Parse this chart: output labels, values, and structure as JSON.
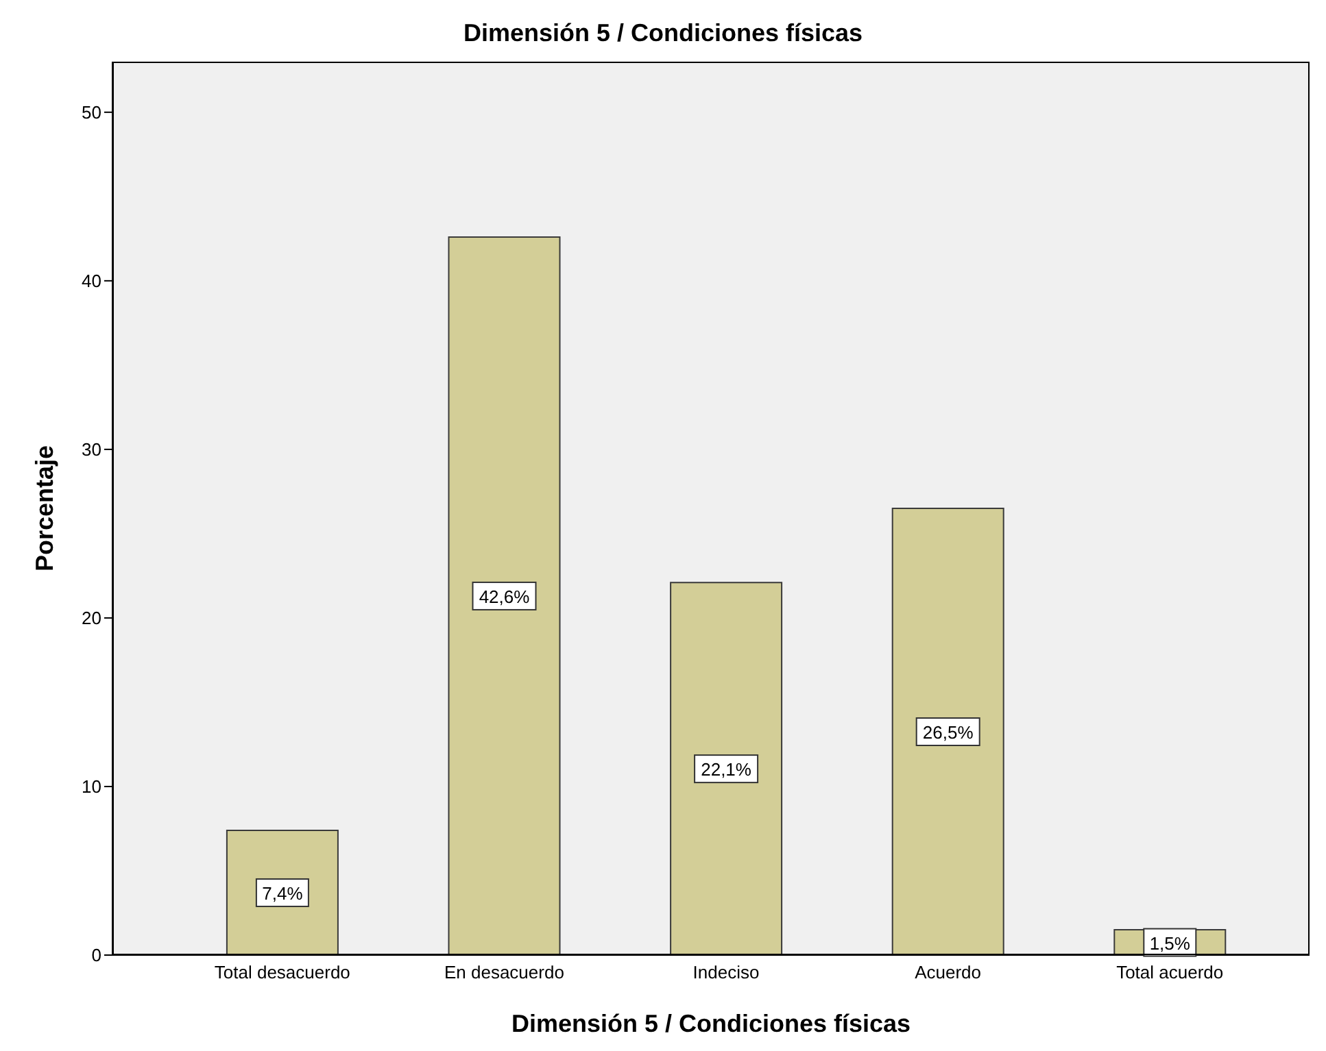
{
  "chart_data": {
    "type": "bar",
    "title": "Dimensión 5 / Condiciones físicas",
    "xlabel": "Dimensión 5 / Condiciones físicas",
    "ylabel": "Porcentaje",
    "categories": [
      "Total desacuerdo",
      "En desacuerdo",
      "Indeciso",
      "Acuerdo",
      "Total acuerdo"
    ],
    "values": [
      7.4,
      42.6,
      22.1,
      26.5,
      1.5
    ],
    "value_labels": [
      "7,4%",
      "42,6%",
      "22,1%",
      "26,5%",
      "1,5%"
    ],
    "color": "#d3ce97",
    "ylim": [
      0,
      53
    ],
    "yticks": [
      0,
      10,
      20,
      30,
      40,
      50
    ]
  }
}
